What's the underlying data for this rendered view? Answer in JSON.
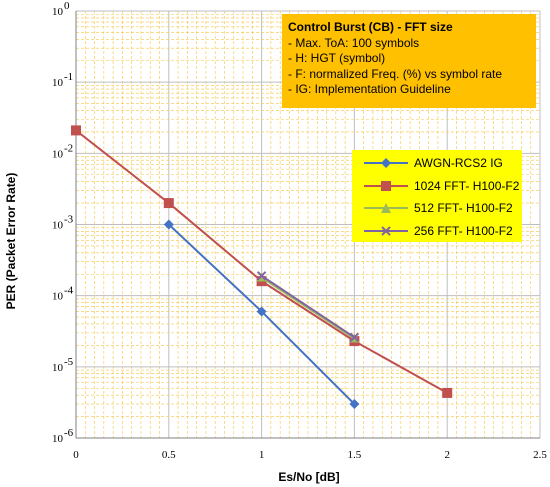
{
  "chart_data": {
    "type": "line",
    "title": "",
    "xlabel": "Es/No [dB]",
    "ylabel": "PER (Packet Error Rate)",
    "xlim": [
      0,
      2.5
    ],
    "ylim": [
      1e-06,
      1
    ],
    "yscale": "log",
    "grid": true,
    "x_ticks": [
      "0",
      "0.5",
      "1",
      "1.5",
      "2",
      "2.5"
    ],
    "y_ticks": [
      {
        "base": "10",
        "exp": "-6"
      },
      {
        "base": "10",
        "exp": "-5"
      },
      {
        "base": "10",
        "exp": "-4"
      },
      {
        "base": "10",
        "exp": "-3"
      },
      {
        "base": "10",
        "exp": "-2"
      },
      {
        "base": "10",
        "exp": "-1"
      },
      {
        "base": "10",
        "exp": "0"
      }
    ],
    "legend_position": "right",
    "series": [
      {
        "name": "AWGN-RCS2 IG",
        "color": "#4472c4",
        "marker": "diamond",
        "x": [
          0.5,
          1,
          1.5
        ],
        "y": [
          0.001,
          6e-05,
          3e-06
        ]
      },
      {
        "name": "1024 FFT- H100-F2",
        "color": "#c0504d",
        "marker": "square",
        "x": [
          0,
          0.5,
          1,
          1.5,
          2
        ],
        "y": [
          0.021,
          0.002,
          0.00016,
          2.3e-05,
          4.3e-06
        ]
      },
      {
        "name": "512 FFT- H100-F2",
        "color": "#9bbb59",
        "marker": "triangle",
        "x": [
          1,
          1.5
        ],
        "y": [
          0.00018,
          2.5e-05
        ]
      },
      {
        "name": "256 FFT- H100-F2",
        "color": "#8064a2",
        "marker": "x",
        "x": [
          1,
          1.5
        ],
        "y": [
          0.00019,
          2.6e-05
        ]
      }
    ]
  },
  "info_box": {
    "title": "Control Burst (CB) - FFT size",
    "lines": [
      "- Max. ToA: 100 symbols",
      "- H: HGT (symbol)",
      "- F: normalized Freq. (%) vs symbol rate",
      "- IG: Implementation Guideline"
    ],
    "background": "#ffc000"
  },
  "legend": {
    "background": "#ffff00"
  },
  "grid_color": "#f5c542"
}
